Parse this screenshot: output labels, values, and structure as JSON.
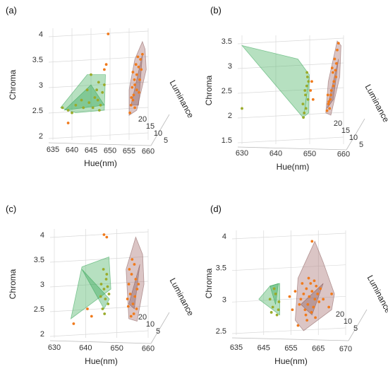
{
  "colors": {
    "green_fill": "#5dbb73",
    "green_edge": "#1f9c45",
    "brown_fill": "#b07f7f",
    "brown_edge": "#7a4848",
    "orange_point": "#f07a1c",
    "olive_point": "#9aab2a"
  },
  "chart_data": [
    {
      "type": "scatter3d",
      "panel_label": "(a)",
      "xlabel": "Hue(nm)",
      "ylabel": "Chroma",
      "zlabel": "Luminance",
      "x_ticks": [
        "635",
        "640",
        "645",
        "650",
        "655",
        "660"
      ],
      "y_ticks": [
        "2",
        "2.5",
        "3",
        "3.5",
        "4"
      ],
      "z_ticks": [
        "20",
        "15",
        "10",
        "5"
      ],
      "xlim": [
        635,
        660
      ],
      "ylim": [
        2,
        4
      ],
      "series": [
        {
          "color_key": "olive_point",
          "hull_color": "green",
          "points": [
            [
              637.5,
              2.55
            ],
            [
              639,
              2.5
            ],
            [
              641,
              2.6
            ],
            [
              642.5,
              2.7
            ],
            [
              644,
              2.9
            ],
            [
              645,
              3.2
            ],
            [
              646,
              2.75
            ],
            [
              646.5,
              2.9
            ],
            [
              647,
              3.05
            ],
            [
              647.5,
              2.6
            ],
            [
              648,
              2.85
            ],
            [
              647.2,
              2.5
            ],
            [
              646.8,
              2.7
            ],
            [
              645.5,
              2.55
            ],
            [
              644.5,
              2.65
            ],
            [
              643,
              2.55
            ],
            [
              640,
              2.45
            ],
            [
              648.5,
              3.0
            ]
          ],
          "hull": [
            [
              637,
              2.55
            ],
            [
              644,
              3.2
            ],
            [
              648.8,
              3.2
            ],
            [
              648.5,
              2.5
            ],
            [
              641,
              2.45
            ]
          ],
          "hull_inner": [
            [
              638,
              2.5
            ],
            [
              645,
              3.0
            ],
            [
              648.5,
              2.6
            ]
          ]
        },
        {
          "color_key": "orange_point",
          "hull_color": "brown",
          "points": [
            [
              657,
              3.2
            ],
            [
              657.5,
              3.35
            ],
            [
              658,
              3.5
            ],
            [
              656.5,
              3.0
            ],
            [
              657,
              2.9
            ],
            [
              656,
              2.7
            ],
            [
              655.5,
              2.6
            ],
            [
              656.2,
              2.8
            ],
            [
              658.5,
              3.6
            ],
            [
              657.8,
              3.1
            ],
            [
              656.8,
              3.4
            ],
            [
              655.8,
              2.95
            ],
            [
              656.5,
              2.55
            ],
            [
              657.3,
              3.55
            ],
            [
              655.2,
              2.45
            ],
            [
              656,
              3.25
            ],
            [
              657.6,
              2.85
            ],
            [
              658.2,
              3.3
            ],
            [
              656.4,
              3.1
            ],
            [
              655.6,
              2.75
            ],
            [
              649,
              3.4
            ],
            [
              648.5,
              3.3
            ],
            [
              649.5,
              4.0
            ],
            [
              639,
              2.25
            ]
          ],
          "hull": [
            [
              655,
              2.4
            ],
            [
              657,
              2.5
            ],
            [
              659.5,
              3.3
            ],
            [
              659.2,
              3.7
            ],
            [
              658.5,
              3.85
            ],
            [
              656.5,
              3.5
            ],
            [
              655,
              2.9
            ]
          ],
          "hull_inner": [
            [
              655.5,
              2.6
            ],
            [
              658.5,
              3.6
            ],
            [
              657.5,
              2.6
            ]
          ]
        }
      ]
    },
    {
      "type": "scatter3d",
      "panel_label": "(b)",
      "xlabel": "Hue(nm)",
      "ylabel": "Chroma",
      "zlabel": "Luminance",
      "x_ticks": [
        "630",
        "640",
        "650",
        "660"
      ],
      "y_ticks": [
        "1.5",
        "2",
        "2.5",
        "3",
        "3.5"
      ],
      "z_ticks": [
        "20",
        "15",
        "10",
        "5"
      ],
      "xlim": [
        622,
        662
      ],
      "ylim": [
        1.5,
        3.7
      ],
      "series": [
        {
          "color_key": "olive_point",
          "hull_color": "green",
          "points": [
            [
              646,
              2.3
            ],
            [
              647,
              2.5
            ],
            [
              647.5,
              2.7
            ],
            [
              646.5,
              2.1
            ],
            [
              647.8,
              2.9
            ],
            [
              648,
              2.4
            ],
            [
              646.8,
              2.6
            ],
            [
              647.2,
              2.2
            ],
            [
              648.2,
              2.8
            ],
            [
              646.2,
              2.0
            ],
            [
              647.6,
              3.0
            ],
            [
              622,
              2.2
            ]
          ],
          "hull": [
            [
              622,
              3.6
            ],
            [
              644,
              3.3
            ],
            [
              648.5,
              2.95
            ],
            [
              648.3,
              2.1
            ],
            [
              646,
              2.0
            ]
          ],
          "hull_inner": [
            [
              646.5,
              2.1
            ],
            [
              648.5,
              2.9
            ],
            [
              647.2,
              2.4
            ]
          ]
        },
        {
          "color_key": "orange_point",
          "hull_color": "brown",
          "points": [
            [
              656,
              2.3
            ],
            [
              657,
              2.5
            ],
            [
              658,
              2.7
            ],
            [
              659,
              2.9
            ],
            [
              657.5,
              3.1
            ],
            [
              656.5,
              2.2
            ],
            [
              658.5,
              3.3
            ],
            [
              659.5,
              3.5
            ],
            [
              657.2,
              2.6
            ],
            [
              656.8,
              2.4
            ],
            [
              658.2,
              2.8
            ],
            [
              659.2,
              3.2
            ],
            [
              660,
              3.65
            ],
            [
              655.5,
              2.15
            ],
            [
              657.8,
              3.0
            ],
            [
              656.2,
              2.35
            ],
            [
              658.8,
              3.05
            ],
            [
              655.8,
              2.5
            ],
            [
              649,
              2.6
            ],
            [
              649.5,
              2.8
            ],
            [
              650,
              2.4
            ]
          ],
          "hull": [
            [
              655,
              2.1
            ],
            [
              657,
              2.05
            ],
            [
              660.5,
              2.9
            ],
            [
              661,
              3.6
            ],
            [
              659.5,
              3.7
            ],
            [
              656,
              2.8
            ]
          ],
          "hull_inner": [
            [
              655.5,
              2.2
            ],
            [
              660,
              3.3
            ],
            [
              658,
              2.4
            ]
          ]
        }
      ]
    },
    {
      "type": "scatter3d",
      "panel_label": "(c)",
      "xlabel": "Hue(nm)",
      "ylabel": "Chroma",
      "zlabel": "Luminance",
      "x_ticks": [
        "630",
        "640",
        "650",
        "660"
      ],
      "y_ticks": [
        "2",
        "2.5",
        "3",
        "3.5",
        "4"
      ],
      "z_ticks": [
        "20",
        "10",
        "5"
      ],
      "xlim": [
        628,
        662
      ],
      "ylim": [
        2,
        4
      ],
      "series": [
        {
          "color_key": "olive_point",
          "hull_color": "green",
          "points": [
            [
              645,
              3.0
            ],
            [
              646,
              2.9
            ],
            [
              646.5,
              2.7
            ],
            [
              647,
              3.2
            ],
            [
              647.5,
              2.6
            ],
            [
              645.5,
              2.5
            ],
            [
              646.8,
              3.1
            ],
            [
              647.8,
              2.8
            ],
            [
              646.2,
              2.4
            ],
            [
              644.8,
              2.75
            ],
            [
              647.3,
              2.95
            ],
            [
              645.8,
              3.3
            ]
          ],
          "hull": [
            [
              634,
              2.3
            ],
            [
              648.5,
              2.9
            ],
            [
              647.8,
              3.55
            ],
            [
              638,
              3.35
            ]
          ],
          "hull_inner": [
            [
              638,
              3.3
            ],
            [
              648,
              2.7
            ],
            [
              646,
              2.5
            ]
          ]
        },
        {
          "color_key": "orange_point",
          "hull_color": "brown",
          "points": [
            [
              655,
              3.0
            ],
            [
              656,
              3.2
            ],
            [
              657,
              3.4
            ],
            [
              655.5,
              2.8
            ],
            [
              656.5,
              2.6
            ],
            [
              657.5,
              3.1
            ],
            [
              658,
              2.9
            ],
            [
              654.5,
              2.7
            ],
            [
              656.2,
              3.5
            ],
            [
              657.8,
              2.5
            ],
            [
              655.2,
              3.3
            ],
            [
              656.8,
              2.4
            ],
            [
              658.5,
              3.0
            ],
            [
              654.8,
              2.55
            ],
            [
              657.2,
              2.75
            ],
            [
              655.8,
              2.35
            ],
            [
              646,
              4.0
            ],
            [
              647,
              3.95
            ],
            [
              640,
              2.5
            ],
            [
              635,
              2.2
            ],
            [
              641.5,
              2.35
            ]
          ],
          "hull": [
            [
              655,
              2.3
            ],
            [
              658,
              2.25
            ],
            [
              660.5,
              3.0
            ],
            [
              660,
              3.6
            ],
            [
              657.5,
              3.95
            ],
            [
              654,
              3.3
            ]
          ],
          "hull_inner": [
            [
              655,
              2.6
            ],
            [
              659,
              3.4
            ],
            [
              657,
              2.5
            ]
          ]
        }
      ]
    },
    {
      "type": "scatter3d",
      "panel_label": "(d)",
      "xlabel": "Hue(nm)",
      "ylabel": "Chroma",
      "zlabel": "Luminance",
      "x_ticks": [
        "635",
        "645",
        "655",
        "665",
        "670"
      ],
      "y_ticks": [
        "2.5",
        "3",
        "3.5",
        "4"
      ],
      "z_ticks": [
        "20",
        "10",
        "5"
      ],
      "xlim": [
        633,
        672
      ],
      "ylim": [
        2.3,
        4.1
      ],
      "series": [
        {
          "color_key": "olive_point",
          "hull_color": "green",
          "points": [
            [
              645,
              2.9
            ],
            [
              646,
              2.75
            ],
            [
              647,
              3.0
            ],
            [
              648,
              2.7
            ],
            [
              646.5,
              3.1
            ],
            [
              647.5,
              2.6
            ],
            [
              645.5,
              2.65
            ],
            [
              648.2,
              2.85
            ]
          ],
          "hull": [
            [
              641,
              2.9
            ],
            [
              645,
              3.15
            ],
            [
              648.5,
              3.2
            ],
            [
              648.5,
              2.6
            ]
          ],
          "hull_inner": [
            [
              645,
              3.15
            ],
            [
              648,
              3.2
            ],
            [
              647,
              2.8
            ]
          ]
        },
        {
          "color_key": "orange_point",
          "hull_color": "brown",
          "points": [
            [
              656,
              2.9
            ],
            [
              657,
              3.0
            ],
            [
              658,
              3.1
            ],
            [
              659,
              2.95
            ],
            [
              660,
              3.05
            ],
            [
              661,
              2.9
            ],
            [
              662,
              3.0
            ],
            [
              657.5,
              2.7
            ],
            [
              658.5,
              2.8
            ],
            [
              659.5,
              3.2
            ],
            [
              660.5,
              2.75
            ],
            [
              661.5,
              3.15
            ],
            [
              656.5,
              3.2
            ],
            [
              657.8,
              2.6
            ],
            [
              658.8,
              3.3
            ],
            [
              659.8,
              2.65
            ],
            [
              660.8,
              3.25
            ],
            [
              655.5,
              2.8
            ],
            [
              662.5,
              2.85
            ],
            [
              663,
              3.1
            ],
            [
              664,
              2.9
            ],
            [
              658.2,
              2.5
            ],
            [
              661.2,
              2.55
            ],
            [
              654,
              3.05
            ],
            [
              653,
              2.7
            ],
            [
              652,
              2.95
            ],
            [
              666,
              2.75
            ],
            [
              667,
              3.0
            ],
            [
              660,
              4.0
            ],
            [
              655,
              2.4
            ]
          ],
          "hull": [
            [
              654,
              2.5
            ],
            [
              657,
              2.3
            ],
            [
              667,
              2.7
            ],
            [
              668,
              3.0
            ],
            [
              664,
              3.6
            ],
            [
              661,
              4.0
            ],
            [
              655,
              3.3
            ]
          ],
          "hull_inner": [
            [
              656,
              2.8
            ],
            [
              664,
              3.2
            ],
            [
              660,
              2.6
            ]
          ]
        }
      ]
    }
  ]
}
